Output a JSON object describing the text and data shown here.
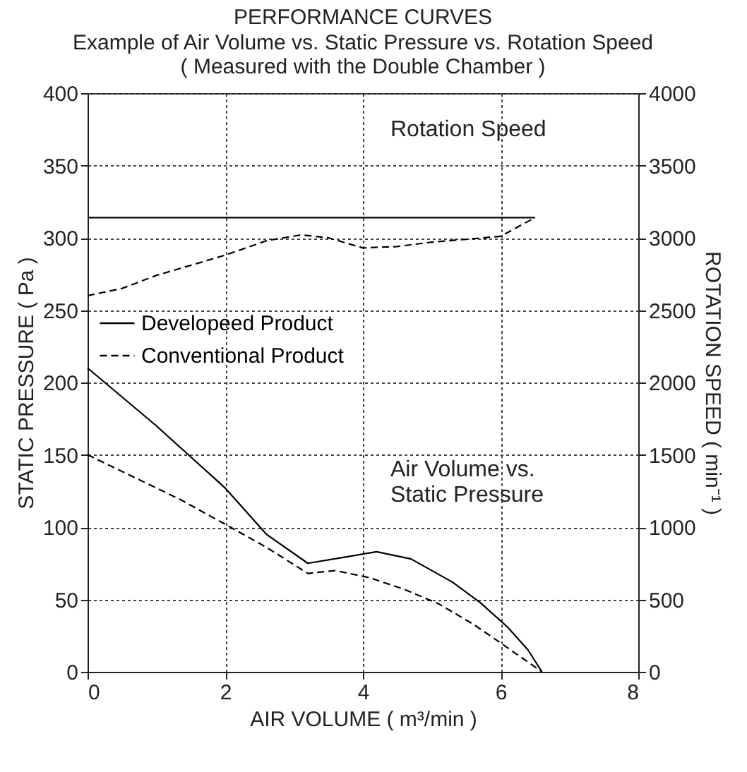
{
  "chart_data": {
    "type": "line",
    "title": "PERFORMANCE CURVES",
    "subtitle": "Example of Air Volume vs. Static Pressure vs. Rotation Speed\n( Measured with the Double Chamber )",
    "xlabel": "AIR VOLUME ( m³/min )",
    "ylabel": "STATIC PRESSURE ( Pa )",
    "y2label": "ROTATION SPEED  ( min⁻¹ )",
    "annotations": [
      "Rotation Speed",
      "Air Volume vs.\nStatic Pressure"
    ],
    "series": [
      {
        "name": "Developeed Product",
        "color": "#000000",
        "line_style": "solid",
        "x": [
          0,
          1,
          2,
          2.6,
          3.2,
          3.7,
          4.2,
          4.7,
          5.3,
          5.7,
          6.1,
          6.4,
          6.6
        ],
        "values": [
          210,
          170,
          127,
          95,
          75,
          79,
          83,
          78,
          62,
          48,
          31,
          15,
          0
        ]
      },
      {
        "name": "Conventional Product",
        "color": "#000000",
        "line_style": "dashed",
        "x": [
          0,
          1.35,
          2,
          2.6,
          3.2,
          3.6,
          4.1,
          4.6,
          5.1,
          5.6,
          6,
          6.3,
          6.6
        ],
        "values": [
          150,
          119,
          102,
          86,
          68,
          70,
          65,
          57,
          47,
          33,
          20,
          10,
          0
        ]
      },
      {
        "color": "#000000",
        "line_style": "solid",
        "axis": "y2",
        "x": [
          0,
          6.5
        ],
        "values": [
          3140,
          3140
        ]
      },
      {
        "color": "#000000",
        "line_style": "dashed",
        "axis": "y2",
        "x": [
          0,
          0.5,
          1,
          2,
          2.6,
          3.1,
          3.5,
          4,
          4.5,
          5,
          5.5,
          6,
          6.5
        ],
        "values": [
          2600,
          2650,
          2740,
          2880,
          2980,
          3020,
          3000,
          2930,
          2940,
          2970,
          2990,
          3010,
          3140
        ]
      }
    ],
    "xlim": [
      0,
      8
    ],
    "xticks": [
      0,
      2,
      4,
      6,
      8
    ],
    "ylim": [
      0,
      400
    ],
    "yticks": [
      0,
      50,
      100,
      150,
      200,
      250,
      300,
      350,
      400
    ],
    "y2lim": [
      0,
      4000
    ],
    "y2ticks": [
      0,
      500,
      1000,
      1500,
      2000,
      2500,
      3000,
      3500,
      4000
    ],
    "grid": true,
    "legend": "left",
    "marker": "none"
  }
}
